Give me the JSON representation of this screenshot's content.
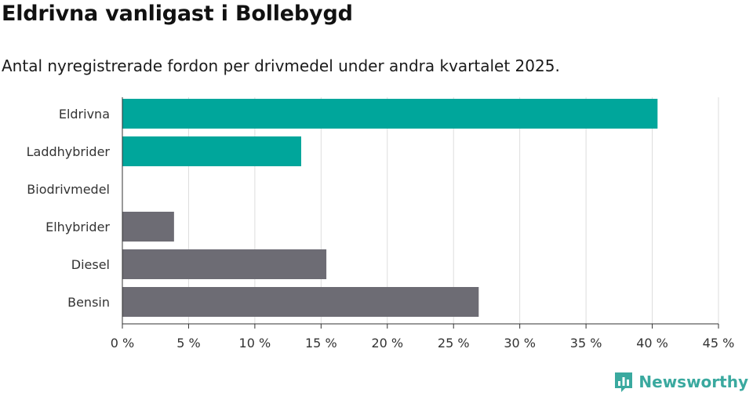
{
  "title": "Eldrivna vanligast i Bollebygd",
  "subtitle": "Antal nyregistrerade fordon per drivmedel under andra kvartalet 2025.",
  "brand": {
    "name": "Newsworthy",
    "icon": "newsworthy-logo-icon"
  },
  "colors": {
    "highlight": "#00a69b",
    "other": "#6d6c74",
    "grid": "#dddddd",
    "brand": "#3aa99f"
  },
  "chart_data": {
    "type": "bar",
    "orientation": "horizontal",
    "categories": [
      "Eldrivna",
      "Laddhybrider",
      "Biodrivmedel",
      "Elhybrider",
      "Diesel",
      "Bensin"
    ],
    "values": [
      40.4,
      13.5,
      0,
      3.9,
      15.4,
      26.9
    ],
    "highlighted": [
      true,
      true,
      true,
      false,
      false,
      false
    ],
    "xlim": [
      0,
      45
    ],
    "xticks": [
      0,
      5,
      10,
      15,
      20,
      25,
      30,
      35,
      40,
      45
    ],
    "tick_labels": [
      "0 %",
      "5 %",
      "10 %",
      "15 %",
      "20 %",
      "25 %",
      "30 %",
      "35 %",
      "40 %",
      "45 %"
    ],
    "grid": true
  }
}
